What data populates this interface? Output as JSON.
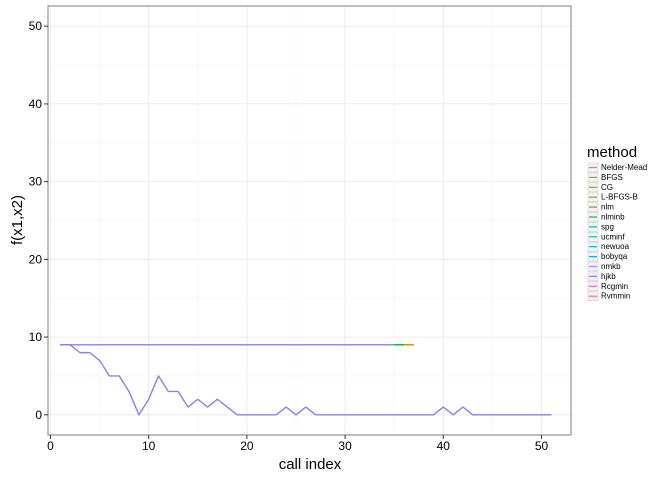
{
  "chart_data": {
    "type": "line",
    "title": "",
    "xlabel": "call index",
    "ylabel": "f(x1,x2)",
    "xlim": [
      -0.25,
      53.0
    ],
    "ylim": [
      -2.6,
      52.6
    ],
    "xticks": [
      0,
      10,
      20,
      30,
      40,
      50
    ],
    "yticks": [
      0,
      10,
      20,
      30,
      40,
      50
    ],
    "grid": true,
    "legend_title": "method",
    "legend_position": "right",
    "series": [
      {
        "name": "Nelder-Mead",
        "color": "#F8766D",
        "x": [],
        "y": []
      },
      {
        "name": "BFGS",
        "color": "#E38900",
        "x": [
          1,
          37
        ],
        "y": [
          9,
          9
        ]
      },
      {
        "name": "CG",
        "color": "#C49A00",
        "x": [
          1,
          37
        ],
        "y": [
          9,
          9
        ]
      },
      {
        "name": "L-BFGS-B",
        "color": "#99A800",
        "x": [
          1,
          36
        ],
        "y": [
          9,
          9
        ]
      },
      {
        "name": "nlm",
        "color": "#53B400",
        "x": [
          1,
          36
        ],
        "y": [
          9,
          9
        ]
      },
      {
        "name": "nlminb",
        "color": "#00BC56",
        "x": [
          1,
          36
        ],
        "y": [
          9,
          9
        ]
      },
      {
        "name": "spg",
        "color": "#00C094",
        "x": [
          1,
          35
        ],
        "y": [
          9,
          9
        ]
      },
      {
        "name": "ucminf",
        "color": "#00BFC4",
        "x": [
          1,
          35
        ],
        "y": [
          9,
          9
        ]
      },
      {
        "name": "newuoa",
        "color": "#00B6EB",
        "x": [
          1,
          35
        ],
        "y": [
          9,
          9
        ]
      },
      {
        "name": "bobyqa",
        "color": "#06A4FF",
        "x": [
          1,
          35
        ],
        "y": [
          9,
          9
        ]
      },
      {
        "name": "nmkb",
        "color": "#A58AFF",
        "x": [
          1,
          35
        ],
        "y": [
          9,
          9
        ]
      },
      {
        "name": "hjkb",
        "color": "#8F7CF4",
        "x": [
          1,
          2,
          3,
          4,
          5,
          6,
          7,
          8,
          9,
          10,
          11,
          12,
          13,
          14,
          15,
          16,
          17,
          18,
          19,
          20,
          21,
          22,
          23,
          24,
          25,
          26,
          27,
          28,
          29,
          30,
          31,
          32,
          33,
          34,
          35,
          36,
          37,
          38,
          39,
          40,
          41,
          42,
          43,
          44,
          45,
          46,
          47,
          48,
          49,
          50,
          51
        ],
        "y": [
          9,
          9,
          8,
          8,
          7,
          5,
          5,
          3,
          0,
          2,
          5,
          3,
          3,
          1,
          2,
          1,
          2,
          1,
          0,
          0,
          0,
          0,
          0,
          1,
          0,
          1,
          0,
          0,
          0,
          0,
          0,
          0,
          0,
          0,
          0,
          0,
          0,
          0,
          0,
          1,
          0,
          1,
          0,
          0,
          0,
          0,
          0,
          0,
          0,
          0,
          0
        ]
      },
      {
        "name": "Rcgmin",
        "color": "#FB61D7",
        "x": [],
        "y": []
      },
      {
        "name": "Rvmmin",
        "color": "#FF65AE",
        "x": [],
        "y": []
      }
    ]
  }
}
